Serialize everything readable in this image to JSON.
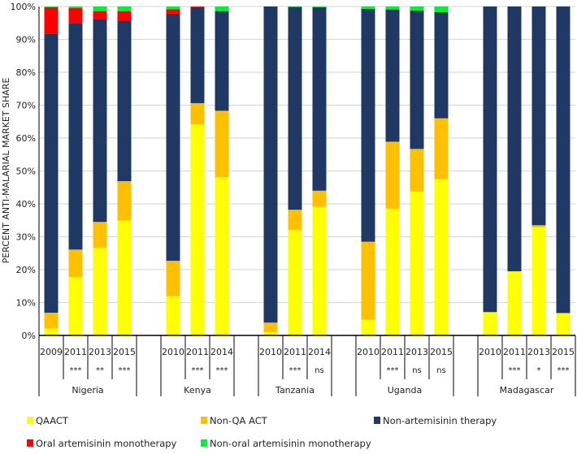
{
  "chart_data": {
    "type": "bar",
    "stacked": true,
    "ylabel": "PERCENT  ANTI-MALARIAL MARKET SHARE",
    "ylim": [
      0,
      100
    ],
    "yticks": [
      "0%",
      "10%",
      "20%",
      "30%",
      "40%",
      "50%",
      "60%",
      "70%",
      "80%",
      "90%",
      "100%"
    ],
    "grid": true,
    "legend_position": "bottom",
    "series": [
      {
        "name": "QAACT",
        "color": "#ffff00"
      },
      {
        "name": "Non-QA ACT",
        "color": "#ffc000"
      },
      {
        "name": "Non-artemisinin therapy",
        "color": "#1f3864"
      },
      {
        "name": "Oral artemisinin monotherapy",
        "color": "#ff0000"
      },
      {
        "name": "Non-oral artemisinin monotherapy",
        "color": "#00ee33"
      }
    ],
    "groups": [
      {
        "country": "Nigeria",
        "bars": [
          {
            "year": "2009",
            "sig": "",
            "values": [
              2.1,
              4.8,
              84.8,
              8.1,
              0.2
            ]
          },
          {
            "year": "2011",
            "sig": "***",
            "values": [
              17.7,
              8.4,
              68.9,
              4.5,
              0.5
            ]
          },
          {
            "year": "2013",
            "sig": "**",
            "values": [
              26.6,
              7.9,
              61.7,
              2.4,
              1.4
            ]
          },
          {
            "year": "2015",
            "sig": "***",
            "values": [
              34.9,
              12.0,
              48.8,
              2.9,
              1.4
            ]
          }
        ]
      },
      {
        "country": "Kenya",
        "bars": [
          {
            "year": "2010",
            "sig": "",
            "values": [
              11.9,
              10.8,
              75.1,
              1.4,
              0.8
            ]
          },
          {
            "year": "2011",
            "sig": "***",
            "values": [
              64.2,
              6.4,
              29.2,
              0.2,
              0.0
            ]
          },
          {
            "year": "2014",
            "sig": "***",
            "values": [
              48.1,
              20.2,
              30.3,
              0.0,
              1.4
            ]
          }
        ]
      },
      {
        "country": "Tanzania",
        "bars": [
          {
            "year": "2010",
            "sig": "",
            "values": [
              1.0,
              2.9,
              96.1,
              0.0,
              0.0
            ]
          },
          {
            "year": "2011",
            "sig": "***",
            "values": [
              32.1,
              6.1,
              61.7,
              0.0,
              0.1
            ]
          },
          {
            "year": "2014",
            "sig": "ns",
            "values": [
              39.1,
              4.9,
              55.8,
              0.0,
              0.2
            ]
          }
        ]
      },
      {
        "country": "Uganda",
        "bars": [
          {
            "year": "2010",
            "sig": "",
            "values": [
              4.8,
              23.7,
              70.8,
              0.0,
              0.7
            ]
          },
          {
            "year": "2011",
            "sig": "***",
            "values": [
              38.5,
              20.4,
              40.2,
              0.0,
              0.9
            ]
          },
          {
            "year": "2013",
            "sig": "ns",
            "values": [
              43.8,
              12.9,
              42.1,
              0.0,
              1.2
            ]
          },
          {
            "year": "2015",
            "sig": "ns",
            "values": [
              47.5,
              18.5,
              32.3,
              0.0,
              1.7
            ]
          }
        ]
      },
      {
        "country": "Madagascar",
        "bars": [
          {
            "year": "2010",
            "sig": "",
            "values": [
              7.1,
              0.0,
              92.9,
              0.0,
              0.0
            ]
          },
          {
            "year": "2011",
            "sig": "***",
            "values": [
              19.5,
              0.0,
              80.5,
              0.0,
              0.0
            ]
          },
          {
            "year": "2013",
            "sig": "*",
            "values": [
              32.9,
              0.6,
              66.5,
              0.0,
              0.0
            ]
          },
          {
            "year": "2015",
            "sig": "***",
            "values": [
              6.8,
              0.0,
              93.2,
              0.0,
              0.0
            ]
          }
        ]
      }
    ]
  }
}
